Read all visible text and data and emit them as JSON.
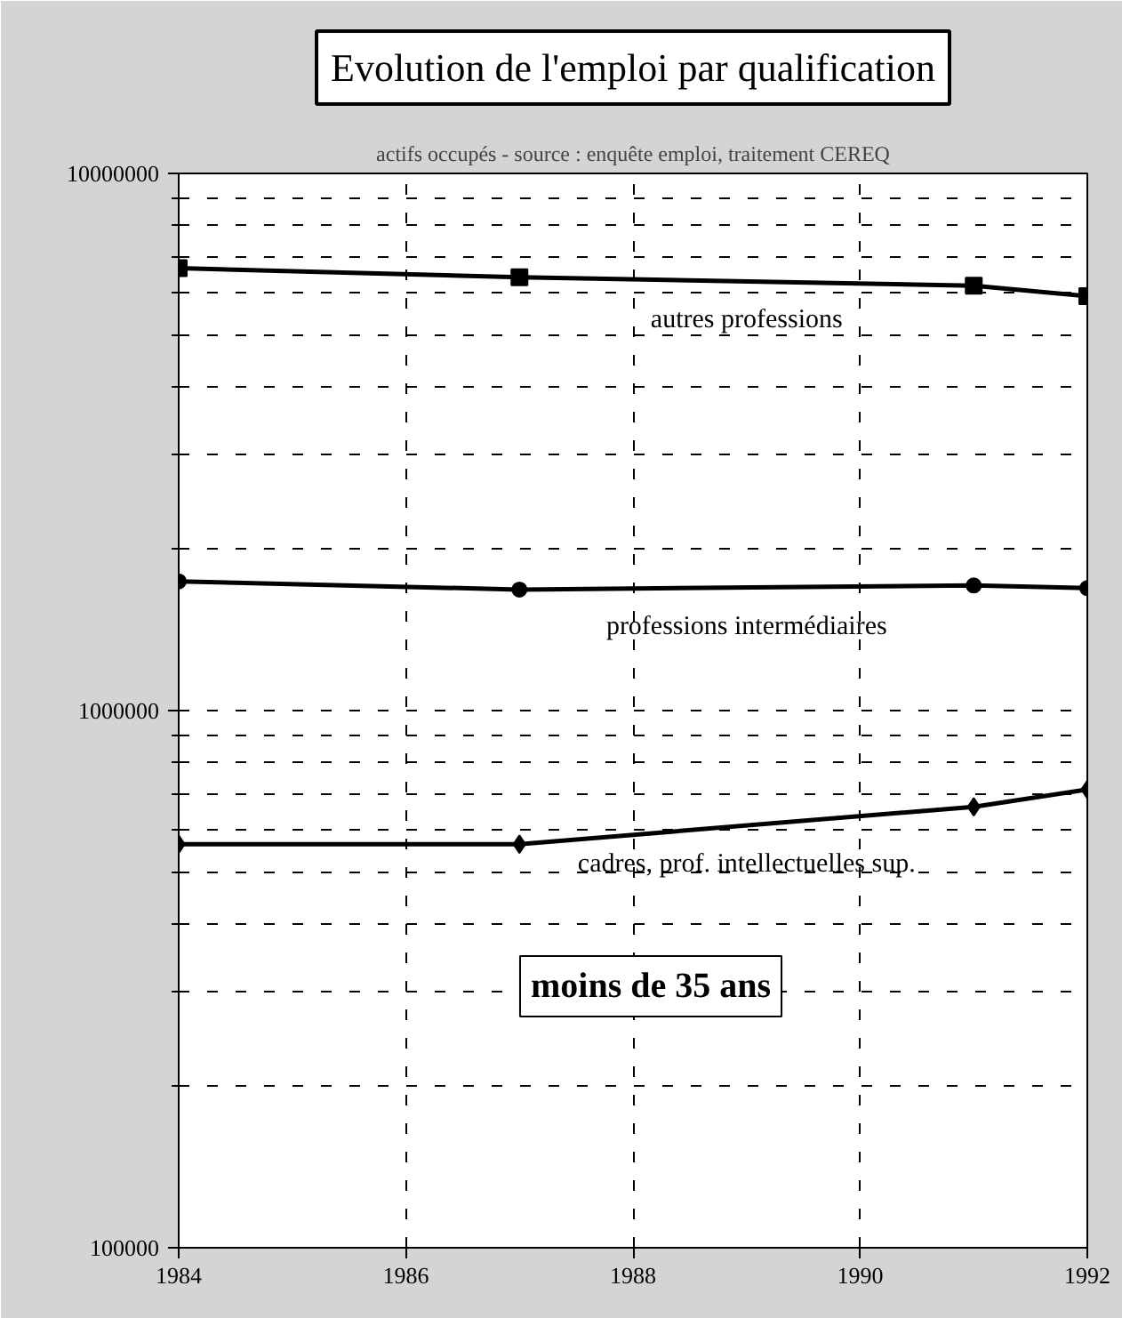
{
  "chart_data": {
    "type": "line",
    "title": "Evolution de l'emploi par qualification",
    "subtitle": "actifs occupés - source : enquête emploi, traitement CEREQ",
    "x": [
      1984,
      1987,
      1991,
      1992
    ],
    "series": [
      {
        "name": "autres professions",
        "color": "#000000",
        "marker": "square",
        "values": [
          6660000,
          6410000,
          6180000,
          5910000
        ]
      },
      {
        "name": "professions intermédiaires",
        "color": "#000000",
        "marker": "circle",
        "values": [
          1740000,
          1680000,
          1710000,
          1690000
        ]
      },
      {
        "name": "cadres, prof. intellectuelles sup.",
        "color": "#000000",
        "marker": "diamond",
        "values": [
          564000,
          564000,
          662000,
          713000
        ]
      }
    ],
    "annotations": [
      "moins de 35 ans"
    ],
    "log": "y",
    "grid": true,
    "line_style": "solid",
    "xlim": [
      1984,
      1992
    ],
    "xticks": [
      1984,
      1986,
      1988,
      1990,
      1992
    ],
    "ylim": [
      100000,
      10000000
    ],
    "yticks": [
      100000,
      1000000,
      10000000
    ]
  }
}
